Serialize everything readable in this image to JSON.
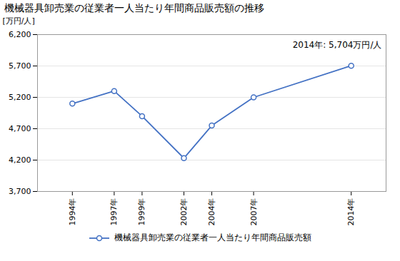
{
  "chart_data": {
    "type": "line",
    "title": "機械器具卸売業の従業者一人当たり年間商品販売額の推移",
    "ylabel": "[万円/人]",
    "annotation": "2014年: 5,704万円/人",
    "x": [
      1994,
      1997,
      1999,
      2002,
      2004,
      2007,
      2014
    ],
    "series": [
      {
        "name": "機械器具卸売業の従業者一人当たり年間商品販売額",
        "color": "#4472C4",
        "marker": "circle",
        "values": [
          5100,
          5300,
          4900,
          4230,
          4750,
          5200,
          5704
        ]
      }
    ],
    "xlim": [
      1991.5,
      2016.5
    ],
    "xticks": [
      {
        "value": 1994,
        "label": "1994年"
      },
      {
        "value": 1997,
        "label": "1997年"
      },
      {
        "value": 1999,
        "label": "1999年"
      },
      {
        "value": 2002,
        "label": "2002年"
      },
      {
        "value": 2004,
        "label": "2004年"
      },
      {
        "value": 2007,
        "label": "2007年"
      },
      {
        "value": 2014,
        "label": "2014年"
      }
    ],
    "ylim": [
      3700,
      6200
    ],
    "yticks": [
      {
        "value": 3700,
        "label": "3,700"
      },
      {
        "value": 4200,
        "label": "4,200"
      },
      {
        "value": 4700,
        "label": "4,700"
      },
      {
        "value": 5200,
        "label": "5,200"
      },
      {
        "value": 5700,
        "label": "5,700"
      },
      {
        "value": 6200,
        "label": "6,200"
      }
    ],
    "grid": true,
    "legend": "bottom"
  }
}
